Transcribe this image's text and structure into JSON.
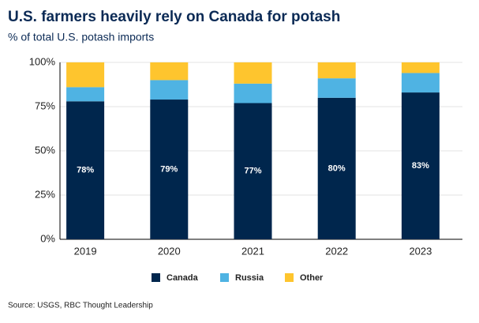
{
  "chart_data": {
    "type": "stacked_bar",
    "title": "U.S. farmers heavily rely on Canada for potash",
    "subtitle": "% of total U.S. potash imports",
    "source": "Source: USGS, RBC Thought Leadership",
    "categories": [
      "2019",
      "2020",
      "2021",
      "2022",
      "2023"
    ],
    "series": [
      {
        "name": "Canada",
        "color": "#00264d",
        "values": [
          78,
          79,
          77,
          80,
          83
        ],
        "value_labels": [
          "78%",
          "79%",
          "77%",
          "80%",
          "83%"
        ]
      },
      {
        "name": "Russia",
        "color": "#4fb3e3",
        "values": [
          8,
          11,
          11,
          11,
          11
        ]
      },
      {
        "name": "Other",
        "color": "#fec52e",
        "values": [
          14,
          10,
          12,
          9,
          6
        ]
      }
    ],
    "ylim": [
      0,
      100
    ],
    "yticks": [
      {
        "value": 0,
        "label": "0%"
      },
      {
        "value": 25,
        "label": "25%"
      },
      {
        "value": 50,
        "label": "50%"
      },
      {
        "value": 75,
        "label": "75%"
      },
      {
        "value": 100,
        "label": "100%"
      }
    ],
    "grid": true,
    "legend": "bottom"
  }
}
